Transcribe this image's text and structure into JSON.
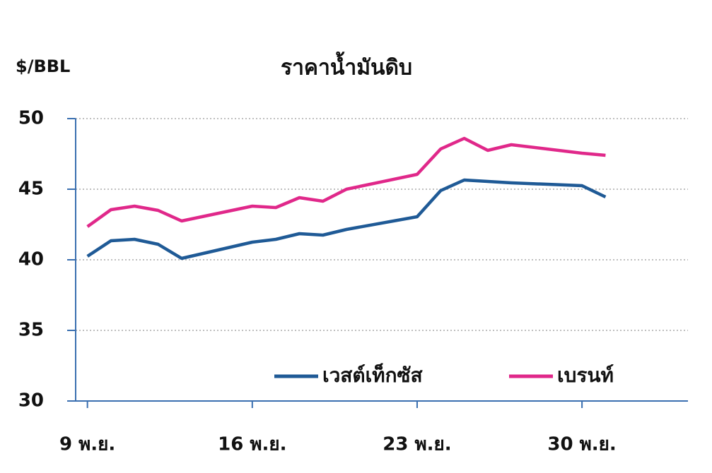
{
  "chart_data": {
    "type": "line",
    "title": "ราคาน้ำมันดิบ",
    "y_label": "$/BBL",
    "x": [
      9,
      10,
      11,
      12,
      13,
      16,
      17,
      18,
      19,
      20,
      23,
      24,
      25,
      26,
      27,
      30,
      31
    ],
    "xlim": [
      8.5,
      34.5
    ],
    "xticks": [
      {
        "value": 9,
        "label": "9 พ.ย."
      },
      {
        "value": 16,
        "label": "16 พ.ย."
      },
      {
        "value": 23,
        "label": "23 พ.ย."
      },
      {
        "value": 30,
        "label": "30 พ.ย."
      }
    ],
    "ylim": [
      30,
      50
    ],
    "yticks": [
      30,
      35,
      40,
      45,
      50
    ],
    "grid": true,
    "series": [
      {
        "name": "เวสต์เท็กซัส",
        "color": "#1f5a96",
        "values": [
          40.25,
          41.35,
          41.45,
          41.1,
          40.1,
          41.25,
          41.45,
          41.85,
          41.75,
          42.15,
          43.05,
          44.9,
          45.65,
          45.55,
          45.45,
          45.25,
          44.45
        ]
      },
      {
        "name": "เบรนท์",
        "color": "#e0288a",
        "values": [
          42.35,
          43.55,
          43.8,
          43.5,
          42.75,
          43.8,
          43.7,
          44.4,
          44.15,
          45.0,
          46.05,
          47.85,
          48.6,
          47.75,
          48.15,
          47.55,
          47.4
        ]
      }
    ]
  }
}
